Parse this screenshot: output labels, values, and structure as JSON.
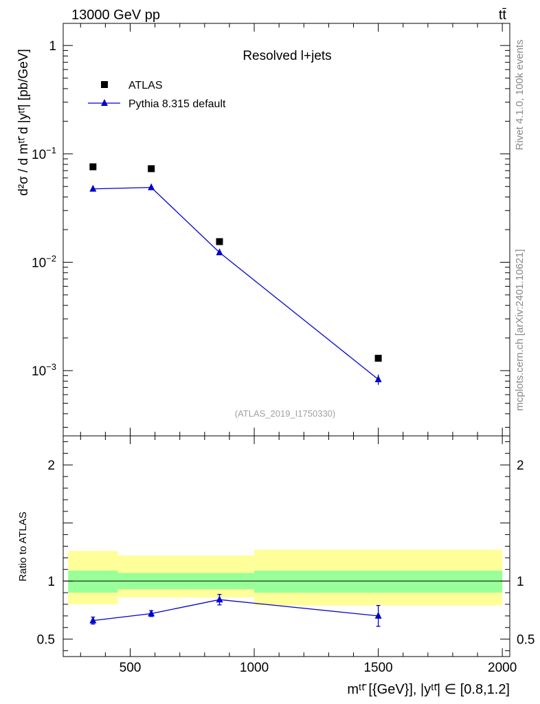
{
  "header": {
    "energy_label": "13000 GeV pp",
    "process_label": "tt̄"
  },
  "side_labels": {
    "rivet": "Rivet 4.1.0,  100k events",
    "mcplots": "mcplots.cern.ch [arXiv:2401.10621]"
  },
  "chart_data": [
    {
      "type": "scatter",
      "panel": "main",
      "title": "Resolved l+jets",
      "watermark": "(ATLAS_2019_I1750330)",
      "ylabel": "d²σ / d mᵗᵗ̄ d |yᵗᵗ̄| [pb/GeV]",
      "yscale": "log",
      "xlim": [
        230,
        2030
      ],
      "ylim": [
        0.00025,
        1.6
      ],
      "xticks": [
        500,
        1000,
        1500,
        2000
      ],
      "yticks": [
        {
          "value": 1,
          "base": "1",
          "exp": ""
        },
        {
          "value": 0.1,
          "base": "10",
          "exp": "−1"
        },
        {
          "value": 0.01,
          "base": "10",
          "exp": "−2"
        },
        {
          "value": 0.001,
          "base": "10",
          "exp": "−3"
        }
      ],
      "legend_position": "top-left",
      "series": [
        {
          "name": "ATLAS",
          "marker": "square",
          "color": "#000000",
          "x": [
            350,
            585,
            860,
            1500
          ],
          "y": [
            0.076,
            0.073,
            0.0155,
            0.0013
          ],
          "yerr": [
            0,
            0,
            0,
            0
          ]
        },
        {
          "name": "Pythia 8.315 default",
          "marker": "triangle",
          "color": "#0000cc",
          "line": true,
          "x": [
            350,
            585,
            860,
            1500
          ],
          "y": [
            0.0475,
            0.049,
            0.0123,
            0.00083
          ],
          "yerr": [
            0.0008,
            0.0008,
            0.0003,
            9e-05
          ]
        }
      ]
    },
    {
      "type": "scatter",
      "panel": "ratio",
      "ylabel": "Ratio to ATLAS",
      "xlabel": "mᵗᵗ̄ [{GeV}], |yᵗᵗ̄| ∈ [0.8,1.2]",
      "xlim": [
        230,
        2030
      ],
      "ylim": [
        0.35,
        2.25
      ],
      "xticks": [
        500,
        1000,
        1500,
        2000
      ],
      "yticks": [
        0.5,
        1,
        2
      ],
      "reference_line": 1,
      "bands": [
        {
          "x0": 250,
          "x1": 450,
          "yellow": [
            0.8,
            1.26
          ],
          "green": [
            0.9,
            1.09
          ]
        },
        {
          "x0": 450,
          "x1": 1000,
          "yellow": [
            0.86,
            1.22
          ],
          "green": [
            0.93,
            1.07
          ]
        },
        {
          "x0": 1000,
          "x1": 2000,
          "yellow": [
            0.79,
            1.27
          ],
          "green": [
            0.9,
            1.09
          ]
        }
      ],
      "band_colors": {
        "yellow": "#ffff99",
        "green": "#99ff99"
      },
      "series": [
        {
          "name": "Pythia 8.315 default / ATLAS",
          "marker": "triangle",
          "color": "#0000cc",
          "x": [
            350,
            585,
            860,
            1500
          ],
          "y": [
            0.66,
            0.72,
            0.84,
            0.7
          ],
          "yerr": [
            0.03,
            0.025,
            0.045,
            0.09
          ]
        }
      ]
    }
  ]
}
